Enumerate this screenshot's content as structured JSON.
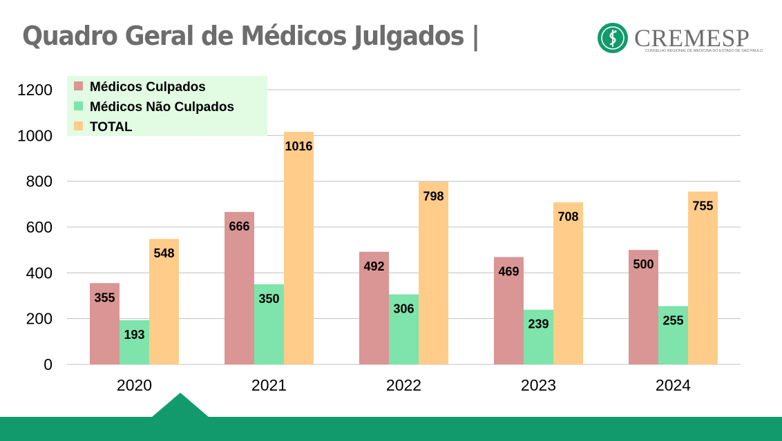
{
  "header": {
    "title": "Quadro Geral de Médicos Julgados |"
  },
  "brand": {
    "name": "CREMESP",
    "subtitle": "CONSELHO REGIONAL DE MEDICINA DO ESTADO DE SÃO PAULO",
    "mark_color": "#129a6c"
  },
  "theme": {
    "accent": "#129a6c",
    "title_color": "#6d6d6d"
  },
  "chart_data": {
    "type": "bar",
    "title": "",
    "xlabel": "",
    "ylabel": "",
    "categories": [
      "2020",
      "2021",
      "2022",
      "2023",
      "2024"
    ],
    "series": [
      {
        "name": "Médicos Culpados",
        "color": "#d99694",
        "values": [
          355,
          666,
          492,
          469,
          500
        ]
      },
      {
        "name": "Médicos Não Culpados",
        "color": "#7ee4ab",
        "values": [
          193,
          350,
          306,
          239,
          255
        ]
      },
      {
        "name": "TOTAL",
        "color": "#ffcc8a",
        "values": [
          548,
          1016,
          798,
          708,
          755
        ]
      }
    ],
    "ylim": [
      0,
      1200
    ],
    "yticks": [
      0,
      200,
      400,
      600,
      800,
      1000,
      1200
    ],
    "grid": true,
    "legend": {
      "position": "top-left",
      "background": "#e2fbe3"
    }
  }
}
